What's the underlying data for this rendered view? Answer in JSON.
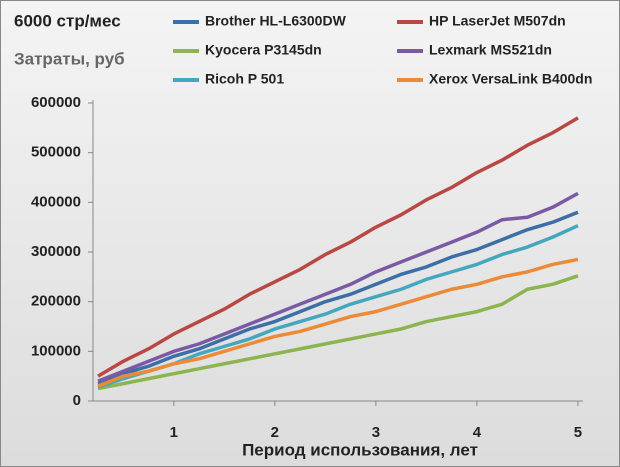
{
  "chart_data": {
    "type": "line",
    "title": "6000 стр/мес",
    "y_label": "Затраты, руб",
    "x_label": "Период использования, лет",
    "x": [
      0.25,
      0.5,
      0.75,
      1,
      1.25,
      1.5,
      1.75,
      2,
      2.25,
      2.5,
      2.75,
      3,
      3.25,
      3.5,
      3.75,
      4,
      4.25,
      4.5,
      4.75,
      5
    ],
    "series": [
      {
        "name": "Brother HL-L6300DW",
        "color": "#3d6ea8",
        "values": [
          35000,
          55000,
          70000,
          90000,
          105000,
          125000,
          145000,
          160000,
          180000,
          200000,
          215000,
          235000,
          255000,
          270000,
          290000,
          305000,
          325000,
          345000,
          360000,
          380000
        ]
      },
      {
        "name": "HP LaserJet M507dn",
        "color": "#b94744",
        "values": [
          50000,
          80000,
          105000,
          135000,
          160000,
          185000,
          215000,
          240000,
          265000,
          295000,
          320000,
          350000,
          375000,
          405000,
          430000,
          460000,
          485000,
          515000,
          540000,
          570000
        ]
      },
      {
        "name": "Kyocera  P3145dn",
        "color": "#8db44f",
        "values": [
          25000,
          35000,
          45000,
          55000,
          65000,
          75000,
          85000,
          95000,
          105000,
          115000,
          125000,
          135000,
          145000,
          160000,
          170000,
          180000,
          195000,
          225000,
          235000,
          252000
        ]
      },
      {
        "name": "Lexmark MS521dn",
        "color": "#7a5aa5",
        "values": [
          40000,
          60000,
          80000,
          100000,
          115000,
          135000,
          155000,
          175000,
          195000,
          215000,
          235000,
          260000,
          280000,
          300000,
          320000,
          340000,
          365000,
          370000,
          390000,
          418000
        ]
      },
      {
        "name": "Ricoh P 501",
        "color": "#45a7bf",
        "values": [
          28000,
          45000,
          60000,
          75000,
          95000,
          110000,
          125000,
          145000,
          160000,
          175000,
          195000,
          210000,
          225000,
          245000,
          260000,
          275000,
          295000,
          310000,
          330000,
          353000
        ]
      },
      {
        "name": "Xerox VersaLink B400dn",
        "color": "#ec8a38",
        "values": [
          30000,
          50000,
          60000,
          75000,
          85000,
          100000,
          115000,
          130000,
          140000,
          155000,
          170000,
          180000,
          195000,
          210000,
          225000,
          235000,
          250000,
          260000,
          275000,
          285000
        ]
      }
    ],
    "xlim": [
      0.2,
      5.05
    ],
    "xticks": [
      1,
      2,
      3,
      4,
      5
    ],
    "ylim": [
      0,
      600000
    ],
    "yticks": [
      0,
      100000,
      200000,
      300000,
      400000,
      500000,
      600000
    ],
    "grid": false
  }
}
